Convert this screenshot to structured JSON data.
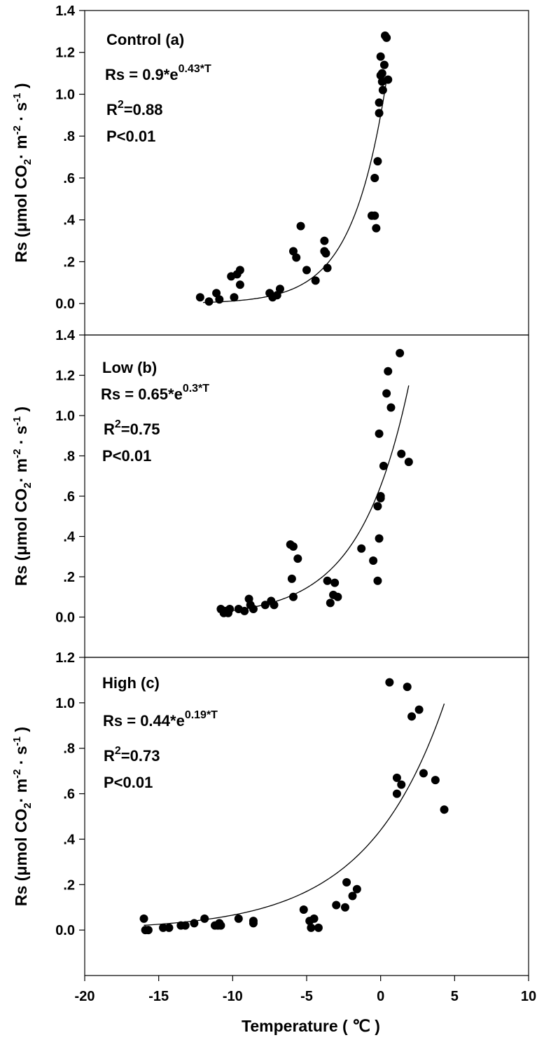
{
  "chart_data": [
    {
      "type": "scatter",
      "panel_label": "Control (a)",
      "equation": {
        "prefix": "Rs = 0.9*e",
        "exponent": "0.43*T"
      },
      "r2": {
        "base": "R",
        "sup": "2",
        "rest": "=0.88"
      },
      "p_value": "P<0.01",
      "fit": {
        "a": 0.9,
        "b": 0.43,
        "x_range": [
          -12,
          0.4
        ]
      },
      "ylim": [
        -0.15,
        1.4
      ],
      "y_ticks": [
        1.4,
        1.2,
        1.0,
        0.8,
        0.6,
        0.4,
        0.2,
        0.0
      ],
      "y_tick_labels": [
        "1.4",
        "1.2",
        "1.0",
        ".8",
        ".6",
        ".4",
        ".2",
        "0.0"
      ],
      "ylabel": {
        "t1": "Rs (",
        "mu": "μ",
        "t2": "mol CO",
        "sub": "2",
        "t3": "· m",
        "sup1": "-2",
        "t4": " · s",
        "sup2": "-1",
        "t5": " )"
      },
      "points": [
        {
          "x": -12.2,
          "y": 0.03
        },
        {
          "x": -11.6,
          "y": 0.01
        },
        {
          "x": -11.1,
          "y": 0.05
        },
        {
          "x": -10.9,
          "y": 0.02
        },
        {
          "x": -10.1,
          "y": 0.13
        },
        {
          "x": -9.9,
          "y": 0.03
        },
        {
          "x": -9.7,
          "y": 0.14
        },
        {
          "x": -9.5,
          "y": 0.16
        },
        {
          "x": -9.5,
          "y": 0.09
        },
        {
          "x": -7.5,
          "y": 0.05
        },
        {
          "x": -7.3,
          "y": 0.03
        },
        {
          "x": -7.0,
          "y": 0.04
        },
        {
          "x": -6.8,
          "y": 0.07
        },
        {
          "x": -5.9,
          "y": 0.25
        },
        {
          "x": -5.7,
          "y": 0.22
        },
        {
          "x": -5.4,
          "y": 0.37
        },
        {
          "x": -5.0,
          "y": 0.16
        },
        {
          "x": -4.4,
          "y": 0.11
        },
        {
          "x": -3.8,
          "y": 0.3
        },
        {
          "x": -3.8,
          "y": 0.25
        },
        {
          "x": -3.7,
          "y": 0.24
        },
        {
          "x": -3.6,
          "y": 0.17
        },
        {
          "x": -0.6,
          "y": 0.42
        },
        {
          "x": -0.4,
          "y": 0.42
        },
        {
          "x": -0.4,
          "y": 0.6
        },
        {
          "x": -0.3,
          "y": 0.36
        },
        {
          "x": -0.2,
          "y": 0.68
        },
        {
          "x": -0.1,
          "y": 0.96
        },
        {
          "x": -0.1,
          "y": 0.91
        },
        {
          "x": 0.0,
          "y": 1.18
        },
        {
          "x": 0.0,
          "y": 1.09
        },
        {
          "x": 0.1,
          "y": 1.06
        },
        {
          "x": 0.15,
          "y": 1.02
        },
        {
          "x": 0.25,
          "y": 1.14
        },
        {
          "x": 0.3,
          "y": 1.28
        },
        {
          "x": 0.4,
          "y": 1.27
        },
        {
          "x": 0.5,
          "y": 1.07
        },
        {
          "x": 0.1,
          "y": 1.1
        }
      ]
    },
    {
      "type": "scatter",
      "panel_label": "Low (b)",
      "equation": {
        "prefix": "Rs = 0.65*e",
        "exponent": "0.3*T"
      },
      "r2": {
        "base": "R",
        "sup": "2",
        "rest": "=0.75"
      },
      "p_value": "P<0.01",
      "fit": {
        "a": 0.65,
        "b": 0.3,
        "x_range": [
          -11,
          1.9
        ]
      },
      "ylim": [
        -0.2,
        1.4
      ],
      "y_ticks": [
        1.4,
        1.2,
        1.0,
        0.8,
        0.6,
        0.4,
        0.2,
        0.0
      ],
      "y_tick_labels": [
        "1.4",
        "1.2",
        "1.0",
        ".8",
        ".6",
        ".4",
        ".2",
        "0.0"
      ],
      "ylabel": {
        "t1": "Rs (",
        "mu": "μ",
        "t2": "mol CO",
        "sub": "2",
        "t3": "· m",
        "sup1": "-2",
        "t4": " · s",
        "sup2": "-1",
        "t5": " )"
      },
      "points": [
        {
          "x": -10.8,
          "y": 0.04
        },
        {
          "x": -10.6,
          "y": 0.02
        },
        {
          "x": -10.5,
          "y": 0.03
        },
        {
          "x": -10.3,
          "y": 0.02
        },
        {
          "x": -10.2,
          "y": 0.04
        },
        {
          "x": -9.6,
          "y": 0.04
        },
        {
          "x": -9.2,
          "y": 0.03
        },
        {
          "x": -8.9,
          "y": 0.09
        },
        {
          "x": -8.8,
          "y": 0.06
        },
        {
          "x": -8.6,
          "y": 0.04
        },
        {
          "x": -7.8,
          "y": 0.06
        },
        {
          "x": -7.4,
          "y": 0.08
        },
        {
          "x": -7.2,
          "y": 0.06
        },
        {
          "x": -6.1,
          "y": 0.36
        },
        {
          "x": -5.9,
          "y": 0.35
        },
        {
          "x": -6.0,
          "y": 0.19
        },
        {
          "x": -5.9,
          "y": 0.1
        },
        {
          "x": -5.6,
          "y": 0.29
        },
        {
          "x": -3.6,
          "y": 0.18
        },
        {
          "x": -3.4,
          "y": 0.07
        },
        {
          "x": -3.2,
          "y": 0.11
        },
        {
          "x": -3.1,
          "y": 0.17
        },
        {
          "x": -2.9,
          "y": 0.1
        },
        {
          "x": -1.3,
          "y": 0.34
        },
        {
          "x": -0.5,
          "y": 0.28
        },
        {
          "x": -0.2,
          "y": 0.18
        },
        {
          "x": -0.2,
          "y": 0.55
        },
        {
          "x": -0.1,
          "y": 0.91
        },
        {
          "x": -0.1,
          "y": 0.39
        },
        {
          "x": 0.0,
          "y": 0.6
        },
        {
          "x": 0.0,
          "y": 0.59
        },
        {
          "x": 0.2,
          "y": 0.75
        },
        {
          "x": 0.4,
          "y": 1.11
        },
        {
          "x": 0.5,
          "y": 1.22
        },
        {
          "x": 0.7,
          "y": 1.04
        },
        {
          "x": 1.3,
          "y": 1.31
        },
        {
          "x": 1.4,
          "y": 0.81
        },
        {
          "x": 1.9,
          "y": 0.77
        }
      ]
    },
    {
      "type": "scatter",
      "panel_label": "High (c)",
      "equation": {
        "prefix": "Rs = 0.44*e",
        "exponent": "0.19*T"
      },
      "r2": {
        "base": "R",
        "sup": "2",
        "rest": "=0.73"
      },
      "p_value": "P<0.01",
      "fit": {
        "a": 0.44,
        "b": 0.19,
        "x_range": [
          -16,
          4.3
        ]
      },
      "ylim": [
        -0.2,
        1.2
      ],
      "y_ticks": [
        1.2,
        1.0,
        0.8,
        0.6,
        0.4,
        0.2,
        0.0
      ],
      "y_tick_labels": [
        "1.2",
        "1.0",
        ".8",
        ".6",
        ".4",
        ".2",
        "0.0"
      ],
      "ylabel": {
        "t1": "Rs (",
        "mu": "μ",
        "t2": "mol CO",
        "sub": "2",
        "t3": "· m",
        "sup1": "-2",
        "t4": " · s",
        "sup2": "-1",
        "t5": " )"
      },
      "points": [
        {
          "x": -16.0,
          "y": 0.05
        },
        {
          "x": -15.9,
          "y": 0.0
        },
        {
          "x": -15.7,
          "y": 0.0
        },
        {
          "x": -14.7,
          "y": 0.01
        },
        {
          "x": -14.3,
          "y": 0.01
        },
        {
          "x": -13.5,
          "y": 0.02
        },
        {
          "x": -13.2,
          "y": 0.02
        },
        {
          "x": -12.6,
          "y": 0.03
        },
        {
          "x": -11.9,
          "y": 0.05
        },
        {
          "x": -11.2,
          "y": 0.02
        },
        {
          "x": -11.0,
          "y": 0.02
        },
        {
          "x": -10.9,
          "y": 0.03
        },
        {
          "x": -10.8,
          "y": 0.02
        },
        {
          "x": -9.6,
          "y": 0.05
        },
        {
          "x": -8.6,
          "y": 0.03
        },
        {
          "x": -8.6,
          "y": 0.04
        },
        {
          "x": -5.2,
          "y": 0.09
        },
        {
          "x": -4.8,
          "y": 0.04
        },
        {
          "x": -4.7,
          "y": 0.01
        },
        {
          "x": -4.5,
          "y": 0.05
        },
        {
          "x": -4.2,
          "y": 0.01
        },
        {
          "x": -3.0,
          "y": 0.11
        },
        {
          "x": -2.4,
          "y": 0.1
        },
        {
          "x": -2.3,
          "y": 0.21
        },
        {
          "x": -1.9,
          "y": 0.15
        },
        {
          "x": -1.6,
          "y": 0.18
        },
        {
          "x": 0.6,
          "y": 1.09
        },
        {
          "x": 1.1,
          "y": 0.67
        },
        {
          "x": 1.1,
          "y": 0.6
        },
        {
          "x": 1.4,
          "y": 0.64
        },
        {
          "x": 1.8,
          "y": 1.07
        },
        {
          "x": 2.1,
          "y": 0.94
        },
        {
          "x": 2.6,
          "y": 0.97
        },
        {
          "x": 2.9,
          "y": 0.69
        },
        {
          "x": 3.7,
          "y": 0.66
        },
        {
          "x": 4.3,
          "y": 0.53
        }
      ]
    }
  ],
  "x_axis": {
    "xlim": [
      -20,
      10
    ],
    "ticks": [
      -20,
      -15,
      -10,
      -5,
      0,
      5,
      10
    ],
    "tick_labels": [
      "-20",
      "-15",
      "-10",
      "-5",
      "0",
      "5",
      "10"
    ],
    "label": "Temperature ( ℃ )"
  },
  "colors": {
    "marker": "#000000",
    "line": "#000000",
    "background": "#ffffff"
  }
}
